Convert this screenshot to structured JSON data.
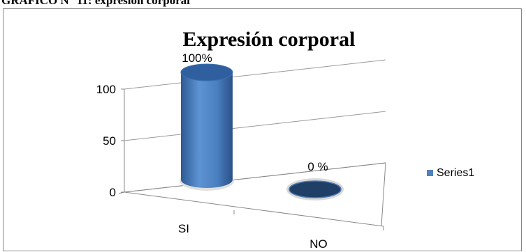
{
  "caption": "GRÁFICO N° 11: expresión corporal",
  "chart_data": {
    "type": "bar",
    "title": "Expresión corporal",
    "categories": [
      "SI",
      "NO"
    ],
    "series": [
      {
        "name": "Series1",
        "values": [
          100,
          0
        ],
        "labels": [
          "100%",
          "0 %"
        ]
      }
    ],
    "yticks": [
      "0",
      "50",
      "100"
    ],
    "ylim": [
      0,
      100
    ],
    "grid": true,
    "legend": "right",
    "colors": {
      "bar_top": "#2f5f9e",
      "bar_body": "#4f86c8",
      "bar_dark": "#1f3f66",
      "legend": "#4f81bd"
    }
  }
}
